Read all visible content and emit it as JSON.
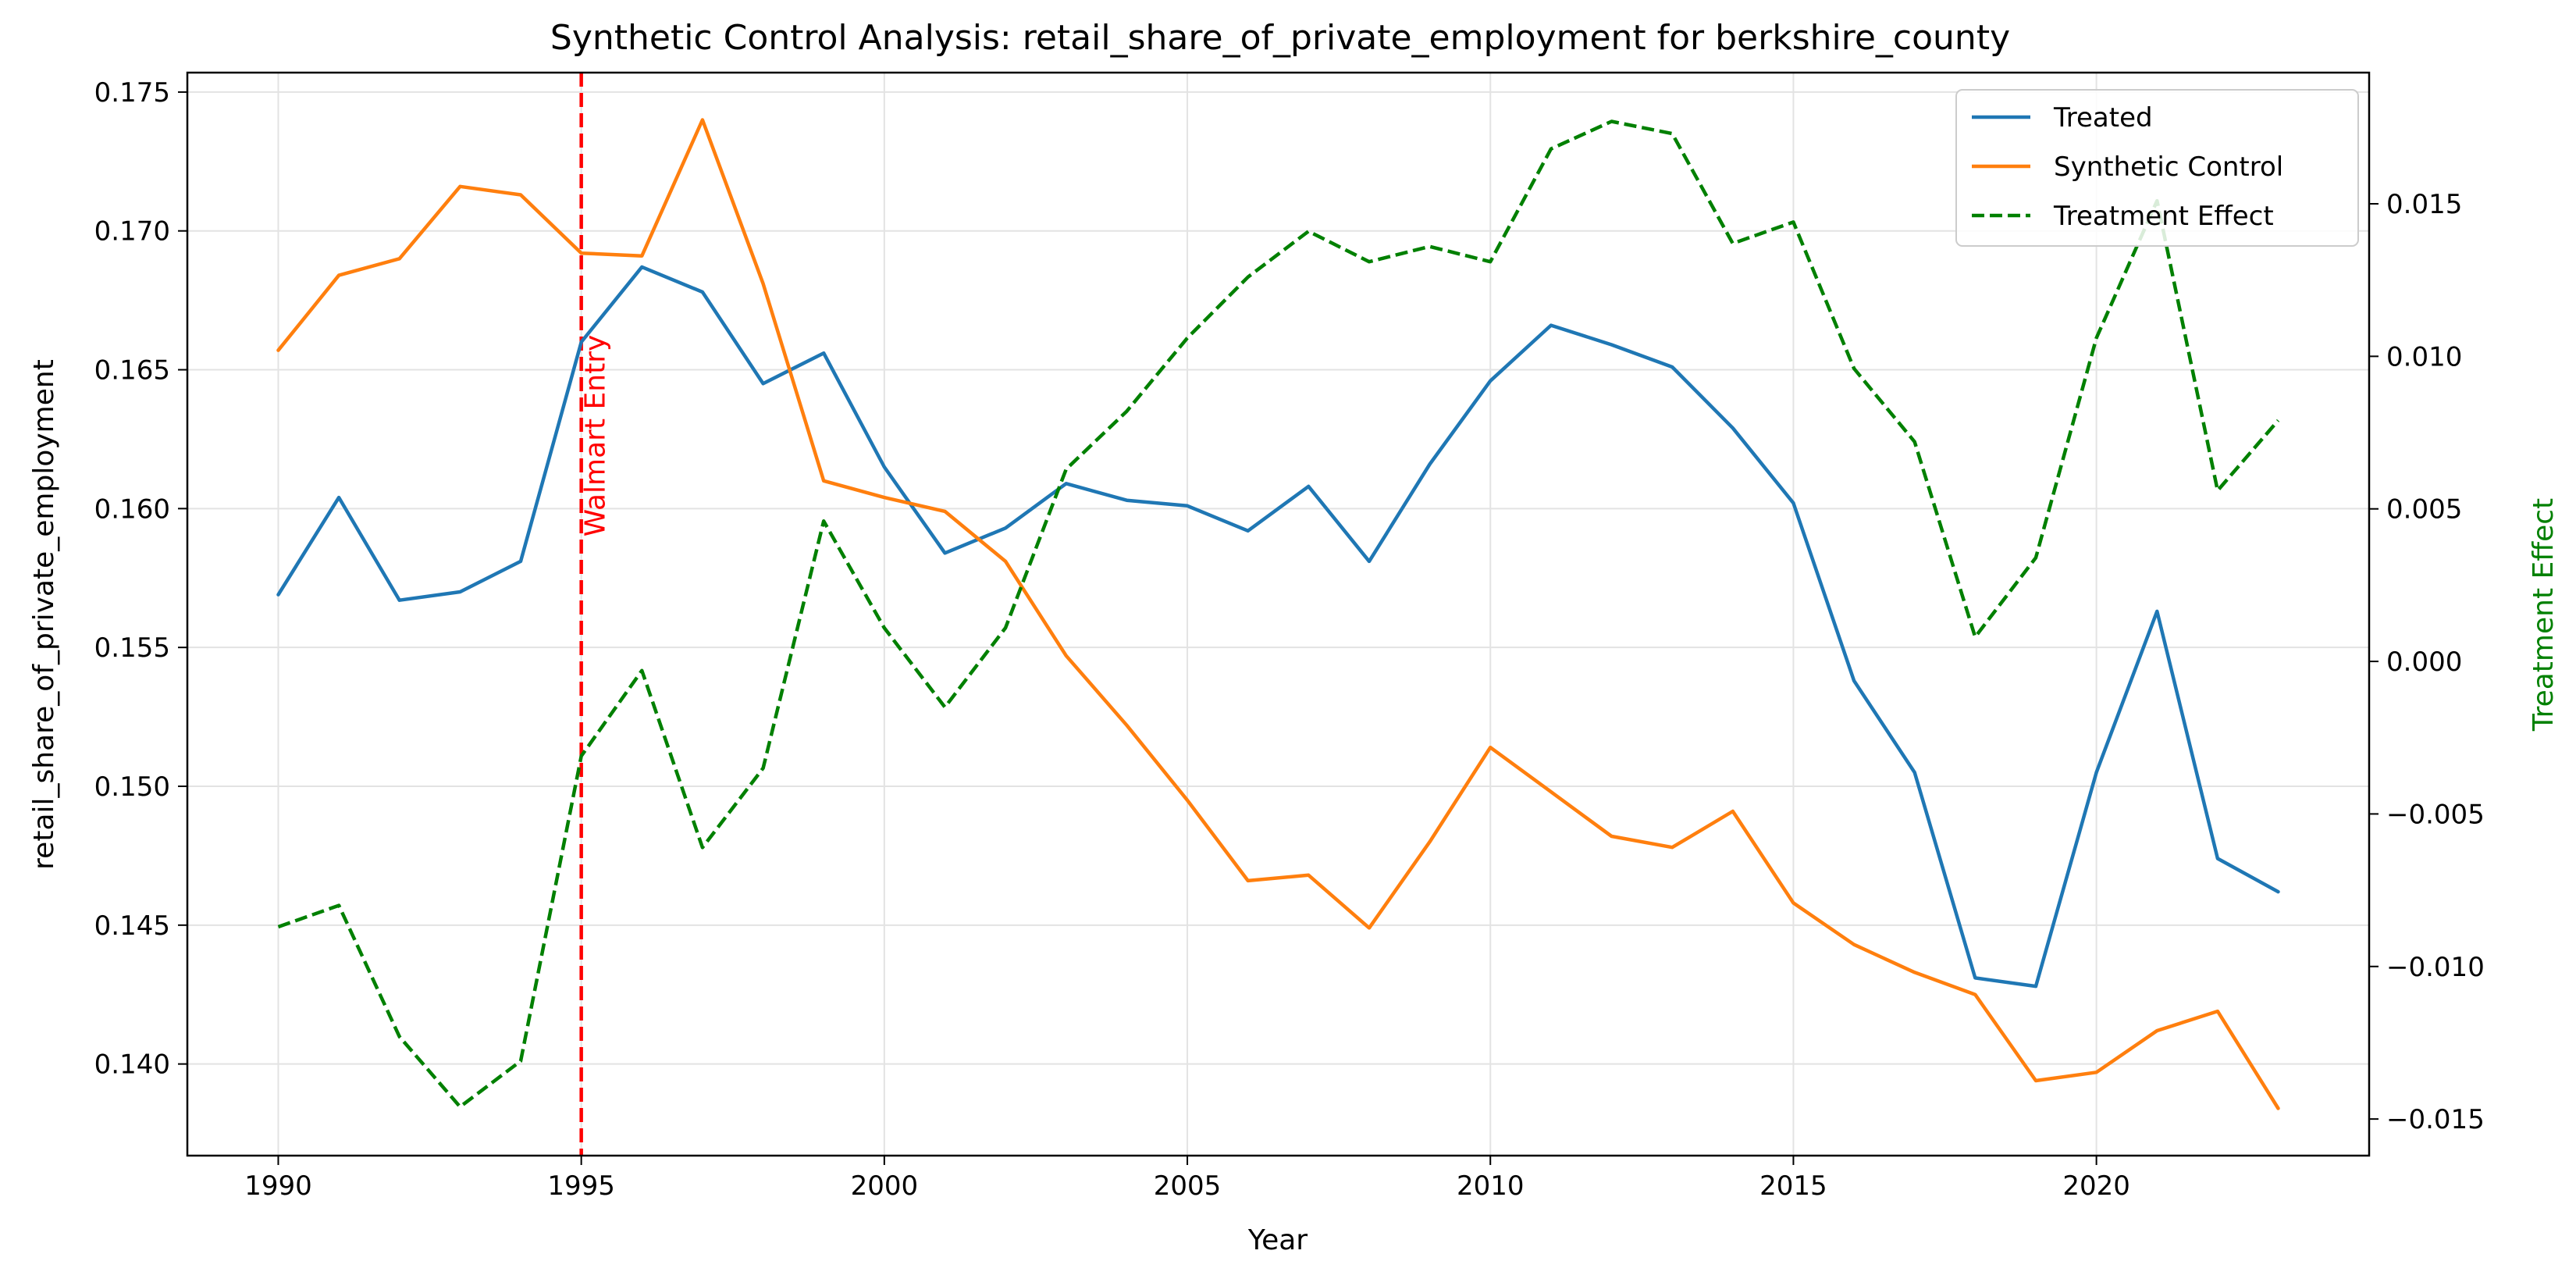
{
  "chart_data": {
    "type": "line",
    "title": "Synthetic Control Analysis: retail_share_of_private_employment for berkshire_county",
    "xlabel": "Year",
    "ylabel": "retail_share_of_private_employment",
    "y2label": "Treatment Effect",
    "xlim": [
      1988.5,
      2024.5
    ],
    "ylim": [
      0.1367,
      0.1757
    ],
    "y2lim": [
      -0.0162,
      0.0193
    ],
    "x_ticks": [
      1990,
      1995,
      2000,
      2005,
      2010,
      2015,
      2020
    ],
    "y_ticks": [
      0.14,
      0.145,
      0.15,
      0.155,
      0.16,
      0.165,
      0.17,
      0.175
    ],
    "y_tick_labels": [
      "0.140",
      "0.145",
      "0.150",
      "0.155",
      "0.160",
      "0.165",
      "0.170",
      "0.175"
    ],
    "y2_ticks": [
      -0.015,
      -0.01,
      -0.005,
      0.0,
      0.005,
      0.01,
      0.015
    ],
    "y2_tick_labels": [
      "−0.015",
      "−0.010",
      "−0.005",
      "0.000",
      "0.005",
      "0.010",
      "0.015"
    ],
    "x": [
      1990,
      1991,
      1992,
      1993,
      1994,
      1995,
      1996,
      1997,
      1998,
      1999,
      2000,
      2001,
      2002,
      2003,
      2004,
      2005,
      2006,
      2007,
      2008,
      2009,
      2010,
      2011,
      2012,
      2013,
      2014,
      2015,
      2016,
      2017,
      2018,
      2019,
      2020,
      2021,
      2022,
      2023
    ],
    "series": [
      {
        "name": "Treated",
        "axis": "left",
        "color": "#1f77b4",
        "style": "solid",
        "values": [
          0.1569,
          0.1604,
          0.1567,
          0.157,
          0.1581,
          0.166,
          0.1687,
          0.1678,
          0.1645,
          0.1656,
          0.1615,
          0.1584,
          0.1593,
          0.1609,
          0.1603,
          0.1601,
          0.1592,
          0.1608,
          0.1581,
          0.1616,
          0.1646,
          0.1666,
          0.1659,
          0.1651,
          0.1629,
          0.1602,
          0.1538,
          0.1505,
          0.1431,
          0.1428,
          0.1505,
          0.1563,
          0.1474,
          0.1462
        ]
      },
      {
        "name": "Synthetic Control",
        "axis": "left",
        "color": "#ff7f0e",
        "style": "solid",
        "values": [
          0.1657,
          0.1684,
          0.169,
          0.1716,
          0.1713,
          0.1692,
          0.1691,
          0.174,
          0.1681,
          0.161,
          0.1604,
          0.1599,
          0.1581,
          0.1547,
          0.1522,
          0.1495,
          0.1466,
          0.1468,
          0.1449,
          0.148,
          0.1514,
          0.1498,
          0.1482,
          0.1478,
          0.1491,
          0.1458,
          0.1443,
          0.1433,
          0.1425,
          0.1394,
          0.1397,
          0.1412,
          0.1419,
          0.1384
        ]
      },
      {
        "name": "Treatment Effect",
        "axis": "right",
        "color": "#008000",
        "style": "dashed",
        "values": [
          -0.0087,
          -0.008,
          -0.0123,
          -0.0146,
          -0.0131,
          -0.0031,
          -0.0003,
          -0.0061,
          -0.0035,
          0.0046,
          0.0011,
          -0.0015,
          0.0011,
          0.0063,
          0.0082,
          0.0106,
          0.0126,
          0.0141,
          0.0131,
          0.0136,
          0.0131,
          0.0168,
          0.0177,
          0.0173,
          0.0137,
          0.0144,
          0.0096,
          0.0072,
          0.0008,
          0.0034,
          0.0106,
          0.0151,
          0.0056,
          0.0079
        ]
      }
    ],
    "annotations": [
      {
        "type": "vline",
        "x": 1995,
        "color": "#ff0000",
        "style": "dashed",
        "label": "Walmart Entry"
      }
    ],
    "legend": {
      "position": "top-right"
    },
    "grid": true
  }
}
